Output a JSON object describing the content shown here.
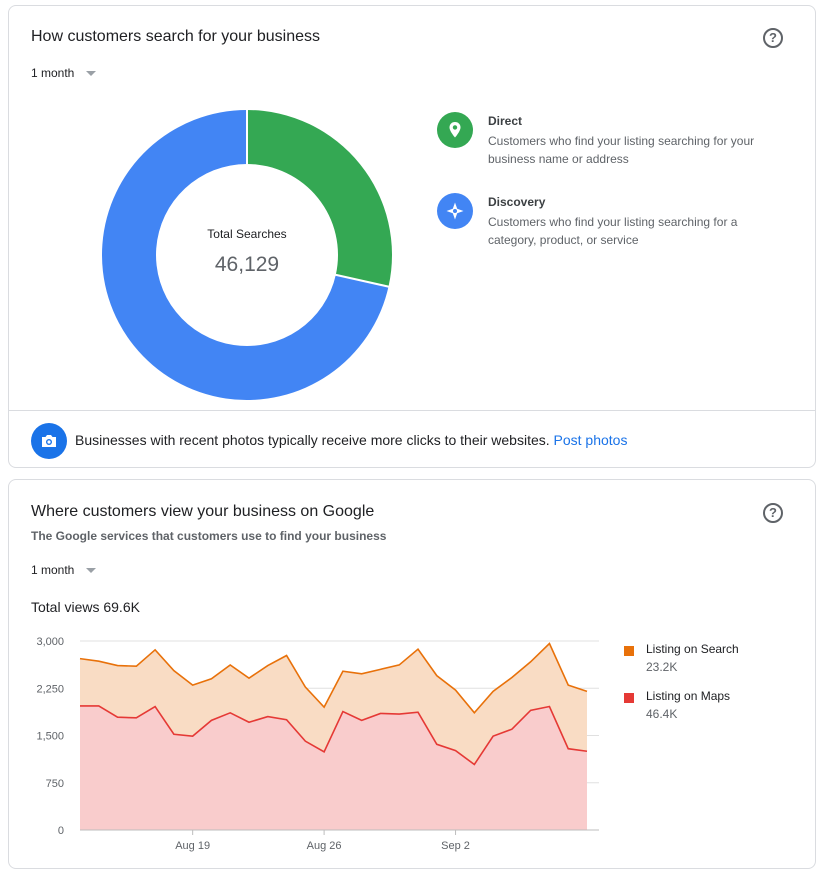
{
  "searches_card": {
    "title": "How customers search for your business",
    "period": "1 month",
    "total_label": "Total Searches",
    "total_value": "46,129",
    "legend": [
      {
        "title": "Direct",
        "description": "Customers who find your listing searching for your business name or address",
        "color": "#34a853",
        "icon": "location-pin-icon"
      },
      {
        "title": "Discovery",
        "description": "Customers who find your listing searching for a category, product, or service",
        "color": "#4285f4",
        "icon": "compass-icon"
      }
    ],
    "donut_split": {
      "direct_fraction": 0.285,
      "discovery_fraction": 0.715
    },
    "tip": {
      "text": "Businesses with recent photos typically receive more clicks to their websites.",
      "link": "Post photos"
    }
  },
  "views_card": {
    "title": "Where customers view your business on Google",
    "subtitle": "The Google services that customers use to find your business",
    "period": "1 month",
    "total_views": "Total views 69.6K",
    "legend": [
      {
        "name": "Listing on Search",
        "value": "23.2K",
        "color": "#e8710a"
      },
      {
        "name": "Listing on Maps",
        "value": "46.4K",
        "color": "#e53935"
      }
    ]
  },
  "chart_data": {
    "type": "area",
    "title": "",
    "xlabel": "",
    "ylabel": "",
    "ylim": [
      0,
      3000
    ],
    "yticks": [
      "0",
      "750",
      "1,500",
      "2,250",
      "3,000"
    ],
    "xtick_labels": [
      {
        "label": "Aug 19",
        "index": 6
      },
      {
        "label": "Aug 26",
        "index": 13
      },
      {
        "label": "Sep 2",
        "index": 20
      }
    ],
    "x": [
      "Aug 13",
      "Aug 14",
      "Aug 15",
      "Aug 16",
      "Aug 17",
      "Aug 18",
      "Aug 19",
      "Aug 20",
      "Aug 21",
      "Aug 22",
      "Aug 23",
      "Aug 24",
      "Aug 25",
      "Aug 26",
      "Aug 27",
      "Aug 28",
      "Aug 29",
      "Aug 30",
      "Aug 31",
      "Sep 1",
      "Sep 2",
      "Sep 3",
      "Sep 4",
      "Sep 5",
      "Sep 6",
      "Sep 7",
      "Sep 8",
      "Sep 9"
    ],
    "grid": true,
    "stacked": true,
    "series": [
      {
        "name": "Listing on Maps",
        "color": "#e53935",
        "fill": "#f9cccc",
        "values": [
          1970,
          1970,
          1790,
          1780,
          1960,
          1520,
          1490,
          1740,
          1860,
          1710,
          1800,
          1750,
          1410,
          1240,
          1880,
          1740,
          1850,
          1840,
          1870,
          1360,
          1260,
          1040,
          1490,
          1600,
          1900,
          1960,
          1290,
          1250
        ]
      },
      {
        "name": "Listing on Search",
        "color": "#e8710a",
        "fill": "#f9dcc4",
        "values": [
          750,
          710,
          820,
          820,
          900,
          1010,
          810,
          660,
          760,
          700,
          810,
          1020,
          860,
          710,
          640,
          740,
          700,
          780,
          1000,
          1090,
          960,
          820,
          710,
          820,
          770,
          1000,
          1010,
          950
        ]
      }
    ],
    "totals": [
      2720,
      2680,
      2610,
      2600,
      2860,
      2530,
      2300,
      2400,
      2620,
      2410,
      2610,
      2770,
      2270,
      1950,
      2520,
      2480,
      2550,
      2620,
      2870,
      2450,
      2220,
      1860,
      2200,
      2420,
      2670,
      2960,
      2300,
      2200
    ]
  }
}
